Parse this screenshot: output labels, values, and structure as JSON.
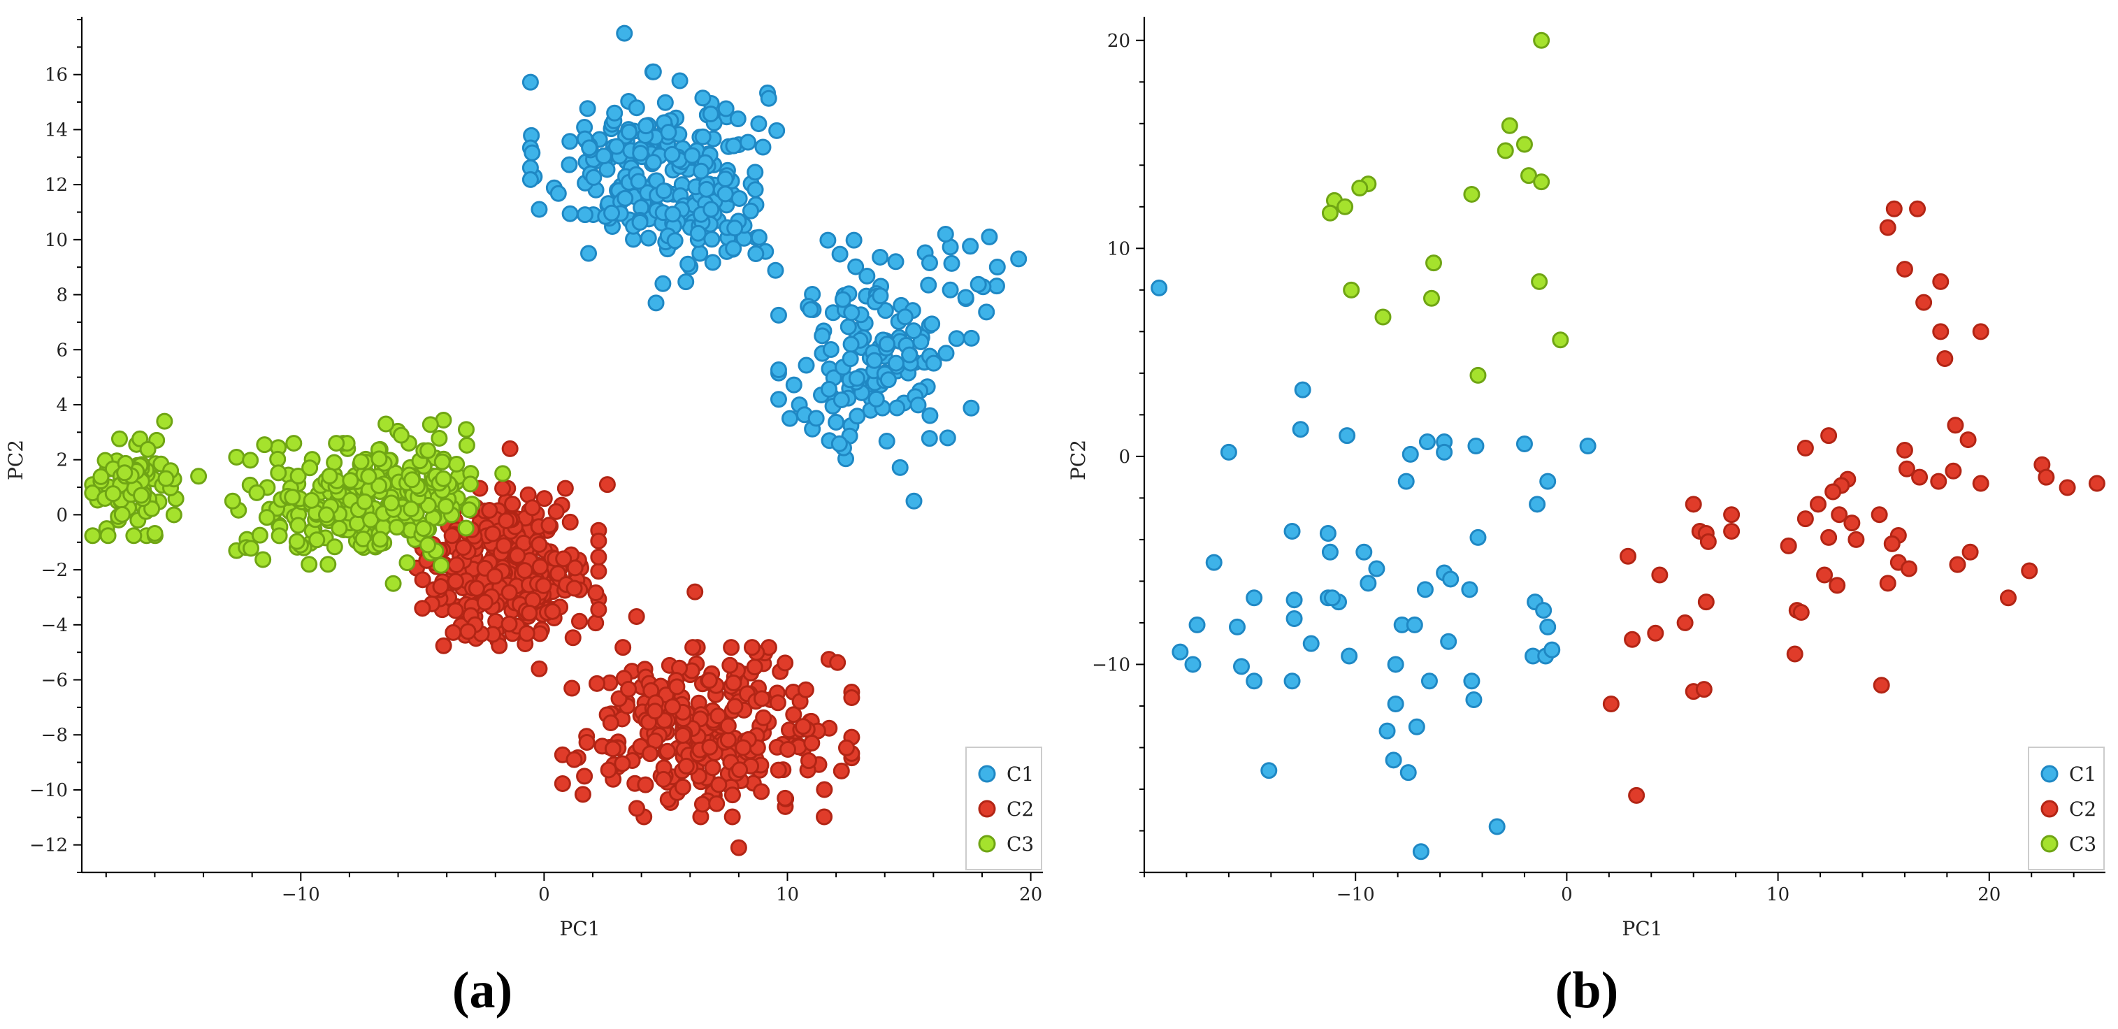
{
  "colors": {
    "C1": "#3eb3e9",
    "C1_edge": "#1f88c4",
    "C2": "#e03c2a",
    "C2_edge": "#b22515",
    "C3": "#a5e22d",
    "C3_edge": "#6fa514"
  },
  "chart_data": [
    {
      "type": "scatter",
      "caption": "(a)",
      "xlabel": "PC1",
      "ylabel": "PC2",
      "xlim": [
        -19,
        20.5
      ],
      "ylim": [
        -13,
        18
      ],
      "xticks": [
        -10,
        0,
        10,
        20
      ],
      "yticks": [
        -12,
        -10,
        -8,
        -6,
        -4,
        -2,
        0,
        2,
        4,
        6,
        8,
        10,
        12,
        14,
        16
      ],
      "legend": {
        "position": "bottom-right",
        "entries": [
          "C1",
          "C2",
          "C3"
        ]
      },
      "clusters": [
        {
          "name": "C1",
          "blobs": [
            {
              "cx": 4.5,
              "cy": 12.8,
              "sx": 2.3,
              "sy": 1.5,
              "n": 200
            },
            {
              "cx": 6.8,
              "cy": 10.6,
              "sx": 1.3,
              "sy": 1.0,
              "n": 60
            },
            {
              "cx": 13.6,
              "cy": 5.8,
              "sx": 1.8,
              "sy": 1.9,
              "n": 140
            },
            {
              "cx": 17.8,
              "cy": 8.7,
              "sx": 1.2,
              "sy": 1.0,
              "n": 12
            }
          ],
          "extra": [
            [
              3.3,
              17.5
            ],
            [
              -0.2,
              11.1
            ],
            [
              4.6,
              7.7
            ],
            [
              10.1,
              3.5
            ],
            [
              15.2,
              0.5
            ],
            [
              16.5,
              10.2
            ],
            [
              19.5,
              9.3
            ],
            [
              18.3,
              10.1
            ]
          ]
        },
        {
          "name": "C2",
          "blobs": [
            {
              "cx": -1.5,
              "cy": -1.9,
              "sx": 1.7,
              "sy": 1.3,
              "n": 330
            },
            {
              "cx": 6.7,
              "cy": -7.9,
              "sx": 2.7,
              "sy": 1.4,
              "n": 290
            }
          ],
          "extra": [
            [
              -1.4,
              2.4
            ],
            [
              2.6,
              1.1
            ],
            [
              -0.2,
              -5.6
            ],
            [
              8.0,
              -12.1
            ],
            [
              6.2,
              -2.8
            ],
            [
              -5.0,
              -3.4
            ],
            [
              3.8,
              -3.7
            ],
            [
              11.0,
              -8.3
            ]
          ]
        },
        {
          "name": "C3",
          "blobs": [
            {
              "cx": -16.8,
              "cy": 1.0,
              "sx": 0.8,
              "sy": 0.8,
              "n": 90
            },
            {
              "cx": -7.8,
              "cy": 0.4,
              "sx": 2.2,
              "sy": 1.0,
              "n": 230
            },
            {
              "cx": -4.8,
              "cy": 0.8,
              "sx": 1.0,
              "sy": 1.2,
              "n": 50
            }
          ],
          "extra": [
            [
              -15.6,
              3.4
            ],
            [
              -14.2,
              1.4
            ],
            [
              -12.8,
              0.5
            ],
            [
              -6.5,
              3.3
            ],
            [
              -3.2,
              3.1
            ],
            [
              -6.2,
              -2.5
            ],
            [
              -1.7,
              1.5
            ]
          ]
        }
      ]
    },
    {
      "type": "scatter",
      "caption": "(b)",
      "xlabel": "PC1",
      "ylabel": "PC2",
      "xlim": [
        -20,
        25.5
      ],
      "ylim": [
        -20,
        21
      ],
      "xticks": [
        -10,
        0,
        10,
        20
      ],
      "yticks": [
        -10,
        0,
        10,
        20
      ],
      "legend": {
        "position": "bottom-right",
        "entries": [
          "C1",
          "C2",
          "C3"
        ]
      },
      "series": [
        {
          "name": "C1",
          "points": [
            [
              -19.3,
              8.1
            ],
            [
              -16.0,
              0.2
            ],
            [
              -12.5,
              3.2
            ],
            [
              -12.6,
              1.3
            ],
            [
              -10.4,
              1.0
            ],
            [
              -7.4,
              0.1
            ],
            [
              -6.6,
              0.7
            ],
            [
              -5.8,
              0.7
            ],
            [
              -5.8,
              0.2
            ],
            [
              -4.3,
              0.5
            ],
            [
              -2.0,
              0.6
            ],
            [
              1.0,
              0.5
            ],
            [
              -0.9,
              -1.2
            ],
            [
              -1.4,
              -2.3
            ],
            [
              -7.6,
              -1.2
            ],
            [
              -16.7,
              -5.1
            ],
            [
              -15.6,
              -8.2
            ],
            [
              -14.8,
              -6.8
            ],
            [
              -13.0,
              -3.6
            ],
            [
              -11.3,
              -3.7
            ],
            [
              -11.2,
              -4.6
            ],
            [
              -9.6,
              -4.6
            ],
            [
              -9.0,
              -5.4
            ],
            [
              -9.4,
              -6.1
            ],
            [
              -11.3,
              -6.8
            ],
            [
              -10.8,
              -7.0
            ],
            [
              -11.1,
              -6.8
            ],
            [
              -12.9,
              -7.8
            ],
            [
              -12.9,
              -6.9
            ],
            [
              -12.1,
              -9.0
            ],
            [
              -10.3,
              -9.6
            ],
            [
              -18.3,
              -9.4
            ],
            [
              -17.7,
              -10.0
            ],
            [
              -17.5,
              -8.1
            ],
            [
              -15.4,
              -10.1
            ],
            [
              -14.8,
              -10.8
            ],
            [
              -13.0,
              -10.8
            ],
            [
              -7.8,
              -8.1
            ],
            [
              -7.2,
              -8.1
            ],
            [
              -6.7,
              -6.4
            ],
            [
              -5.8,
              -5.6
            ],
            [
              -5.5,
              -5.9
            ],
            [
              -4.6,
              -6.4
            ],
            [
              -4.2,
              -3.9
            ],
            [
              -5.6,
              -8.9
            ],
            [
              -8.1,
              -10.0
            ],
            [
              -6.5,
              -10.8
            ],
            [
              -4.5,
              -10.8
            ],
            [
              -4.4,
              -11.7
            ],
            [
              -8.1,
              -11.9
            ],
            [
              -8.5,
              -13.2
            ],
            [
              -7.1,
              -13.0
            ],
            [
              -8.2,
              -14.6
            ],
            [
              -7.5,
              -15.2
            ],
            [
              -14.1,
              -15.1
            ],
            [
              -3.3,
              -17.8
            ],
            [
              -6.9,
              -19.0
            ],
            [
              -1.5,
              -7.0
            ],
            [
              -1.1,
              -7.4
            ],
            [
              -0.9,
              -8.2
            ],
            [
              -1.6,
              -9.6
            ],
            [
              -1.0,
              -9.6
            ],
            [
              -0.7,
              -9.3
            ]
          ]
        },
        {
          "name": "C2",
          "points": [
            [
              15.2,
              11.0
            ],
            [
              15.5,
              11.9
            ],
            [
              16.6,
              11.9
            ],
            [
              16.0,
              9.0
            ],
            [
              17.7,
              8.4
            ],
            [
              16.9,
              7.4
            ],
            [
              17.7,
              6.0
            ],
            [
              19.6,
              6.0
            ],
            [
              17.9,
              4.7
            ],
            [
              18.4,
              1.5
            ],
            [
              19.0,
              0.8
            ],
            [
              11.3,
              0.4
            ],
            [
              12.4,
              1.0
            ],
            [
              16.0,
              0.3
            ],
            [
              16.1,
              -0.6
            ],
            [
              16.7,
              -1.0
            ],
            [
              17.6,
              -1.2
            ],
            [
              18.3,
              -0.7
            ],
            [
              19.6,
              -1.3
            ],
            [
              22.5,
              -0.4
            ],
            [
              22.7,
              -1.0
            ],
            [
              23.7,
              -1.5
            ],
            [
              25.1,
              -1.3
            ],
            [
              13.3,
              -1.1
            ],
            [
              13.0,
              -1.4
            ],
            [
              12.6,
              -1.7
            ],
            [
              11.9,
              -2.3
            ],
            [
              14.8,
              -2.8
            ],
            [
              12.9,
              -2.8
            ],
            [
              11.3,
              -3.0
            ],
            [
              13.5,
              -3.2
            ],
            [
              12.4,
              -3.9
            ],
            [
              13.7,
              -4.0
            ],
            [
              15.7,
              -3.8
            ],
            [
              15.4,
              -4.2
            ],
            [
              15.7,
              -5.1
            ],
            [
              16.2,
              -5.4
            ],
            [
              15.2,
              -6.1
            ],
            [
              12.8,
              -6.2
            ],
            [
              12.2,
              -5.7
            ],
            [
              10.5,
              -4.3
            ],
            [
              10.9,
              -7.4
            ],
            [
              11.1,
              -7.5
            ],
            [
              10.8,
              -9.5
            ],
            [
              14.9,
              -11.0
            ],
            [
              18.5,
              -5.2
            ],
            [
              19.1,
              -4.6
            ],
            [
              20.9,
              -6.8
            ],
            [
              21.9,
              -5.5
            ],
            [
              6.0,
              -2.3
            ],
            [
              6.3,
              -3.6
            ],
            [
              6.6,
              -3.7
            ],
            [
              6.7,
              -4.1
            ],
            [
              7.8,
              -2.8
            ],
            [
              7.8,
              -3.6
            ],
            [
              2.9,
              -4.8
            ],
            [
              4.4,
              -5.7
            ],
            [
              6.6,
              -7.0
            ],
            [
              5.6,
              -8.0
            ],
            [
              4.2,
              -8.5
            ],
            [
              3.1,
              -8.8
            ],
            [
              6.0,
              -11.3
            ],
            [
              6.5,
              -11.2
            ],
            [
              2.1,
              -11.9
            ],
            [
              3.3,
              -16.3
            ]
          ]
        },
        {
          "name": "C3",
          "points": [
            [
              -1.2,
              20.0
            ],
            [
              -2.7,
              15.9
            ],
            [
              -2.0,
              15.0
            ],
            [
              -2.9,
              14.7
            ],
            [
              -1.8,
              13.5
            ],
            [
              -1.2,
              13.2
            ],
            [
              -9.4,
              13.1
            ],
            [
              -9.8,
              12.9
            ],
            [
              -11.0,
              12.3
            ],
            [
              -10.5,
              12.0
            ],
            [
              -11.2,
              11.7
            ],
            [
              -4.5,
              12.6
            ],
            [
              -6.3,
              9.3
            ],
            [
              -1.3,
              8.4
            ],
            [
              -10.2,
              8.0
            ],
            [
              -6.4,
              7.6
            ],
            [
              -8.7,
              6.7
            ],
            [
              -0.3,
              5.6
            ],
            [
              -4.2,
              3.9
            ]
          ]
        }
      ]
    }
  ]
}
